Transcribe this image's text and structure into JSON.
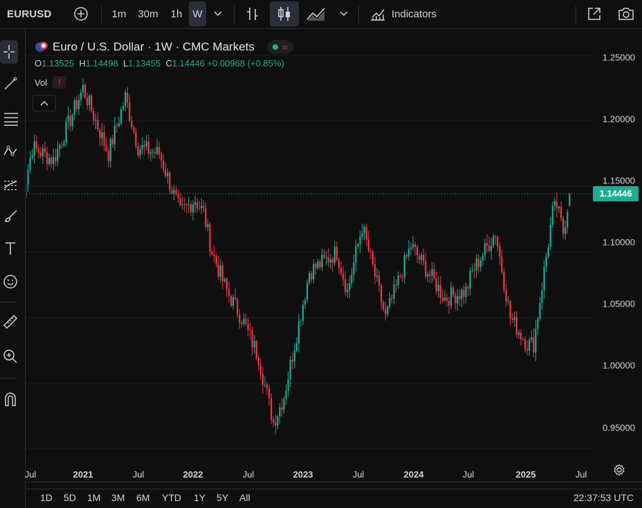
{
  "toolbar": {
    "symbol": "EURUSD",
    "intervals": [
      "1m",
      "30m",
      "1h",
      "W"
    ],
    "active_interval": "W",
    "indicators_label": "Indicators"
  },
  "legend": {
    "title": "Euro / U.S. Dollar · 1W · CMC Markets",
    "o_label": "O",
    "o_value": "1.13525",
    "h_label": "H",
    "h_value": "1.14498",
    "l_label": "L",
    "l_value": "1.13455",
    "c_label": "C",
    "c_value": "1.14446",
    "change": "+0.00968 (+0.85%)",
    "vol_label": "Vol",
    "vol_badge": "!"
  },
  "price_scale": {
    "ticks": [
      "1.25000",
      "1.20000",
      "1.15000",
      "1.10000",
      "1.05000",
      "1.00000",
      "0.95000"
    ],
    "last_price": "1.14446"
  },
  "time_scale": {
    "ticks": [
      "Jul",
      "2021",
      "Jul",
      "2022",
      "Jul",
      "2023",
      "Jul",
      "2024",
      "Jul",
      "2025",
      "Jul"
    ]
  },
  "bottom": {
    "ranges": [
      "1D",
      "5D",
      "1M",
      "3M",
      "6M",
      "YTD",
      "1Y",
      "5Y",
      "All"
    ],
    "clock": "22:37:53 UTC"
  },
  "colors": {
    "up": "#22ab94",
    "down": "#f23645",
    "neutral": "#787b86",
    "background": "#0f0f0f"
  },
  "chart_data": {
    "type": "candlestick",
    "interval": "1W",
    "y_range": [
      0.925,
      1.27
    ],
    "anchor_dates": [
      "2020-06-08",
      "2020-07-20",
      "2020-09-28",
      "2021-01-04",
      "2021-03-29",
      "2021-05-24",
      "2021-07-05",
      "2021-09-13",
      "2021-11-22",
      "2022-01-10",
      "2022-02-07",
      "2022-03-07",
      "2022-04-25",
      "2022-06-13",
      "2022-08-08",
      "2022-09-26",
      "2022-10-31",
      "2023-01-23",
      "2023-04-24",
      "2023-05-29",
      "2023-07-17",
      "2023-10-02",
      "2023-12-25",
      "2024-04-15",
      "2024-06-24",
      "2024-07-15",
      "2024-09-30",
      "2024-11-18",
      "2025-01-13",
      "2025-02-03",
      "2025-04-07",
      "2025-04-21",
      "2025-05-12",
      "2025-06-02"
    ],
    "anchor_closes": [
      1.13,
      1.18,
      1.17,
      1.225,
      1.175,
      1.218,
      1.18,
      1.175,
      1.13,
      1.14,
      1.13,
      1.1,
      1.07,
      1.05,
      1.02,
      0.97,
      0.99,
      1.085,
      1.1,
      1.07,
      1.12,
      1.05,
      1.105,
      1.065,
      1.07,
      1.085,
      1.115,
      1.05,
      1.03,
      1.03,
      1.13,
      1.135,
      1.115,
      1.1445
    ],
    "last_bar": {
      "open": 1.13525,
      "high": 1.14498,
      "low": 1.13455,
      "close": 1.14446
    }
  }
}
